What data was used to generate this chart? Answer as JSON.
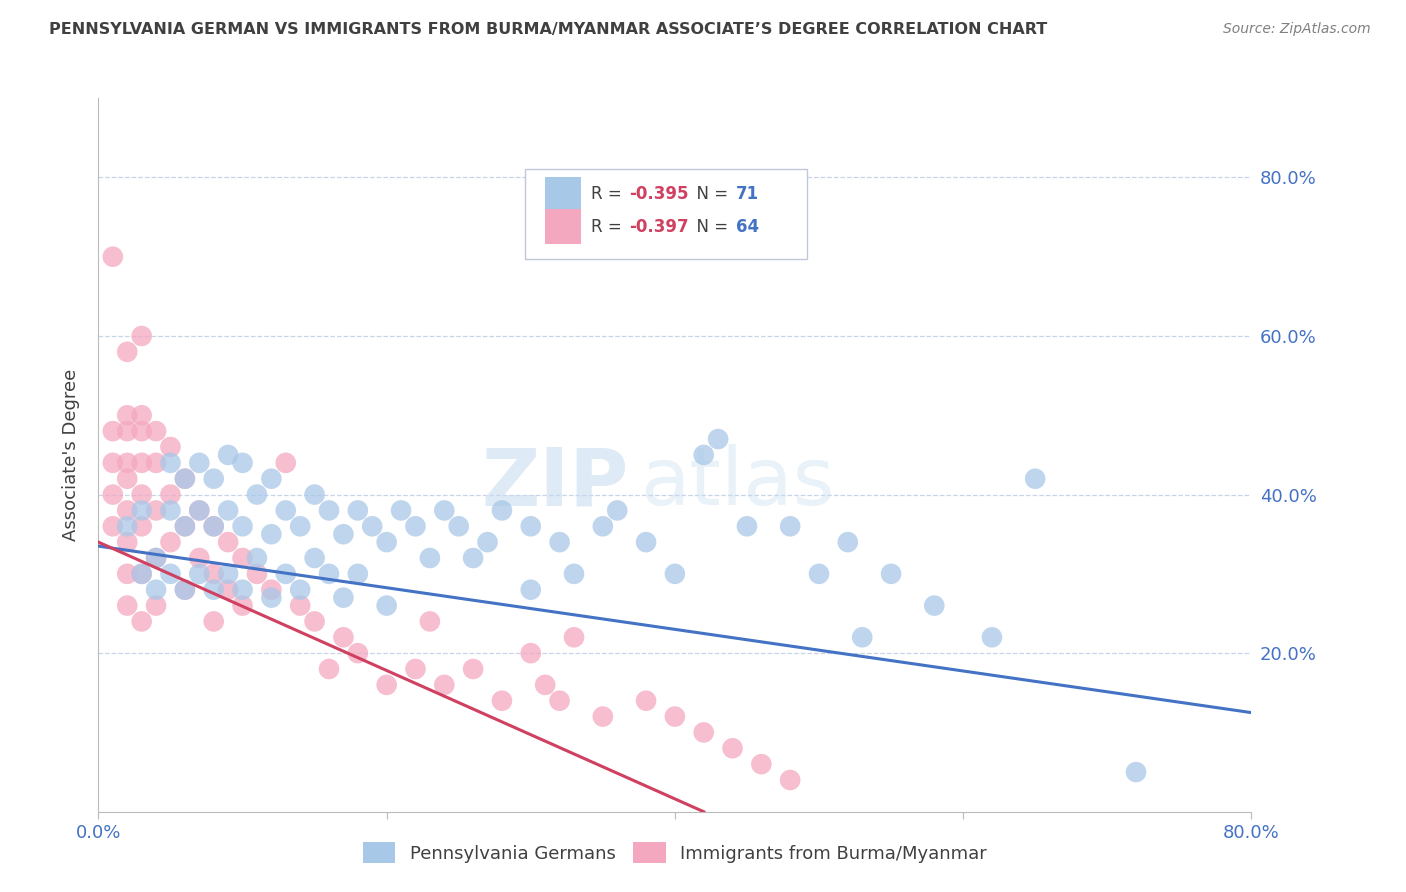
{
  "title": "PENNSYLVANIA GERMAN VS IMMIGRANTS FROM BURMA/MYANMAR ASSOCIATE’S DEGREE CORRELATION CHART",
  "source": "Source: ZipAtlas.com",
  "ylabel": "Associate's Degree",
  "watermark_zip": "ZIP",
  "watermark_atlas": "atlas",
  "legend_blue_r": "-0.395",
  "legend_blue_n": "71",
  "legend_pink_r": "-0.397",
  "legend_pink_n": "64",
  "blue_color": "#a8c8e8",
  "pink_color": "#f4a8c0",
  "trend_blue": "#4472c4",
  "trend_pink": "#d04060",
  "trend_gray": "#c8c8c8",
  "right_axis_color": "#4472c4",
  "title_color": "#404040",
  "source_color": "#808080",
  "background_color": "#ffffff",
  "grid_color": "#c8d4e8",
  "xlim": [
    0.0,
    0.8
  ],
  "ylim": [
    0.0,
    0.9
  ],
  "yticks": [
    0.0,
    0.2,
    0.4,
    0.6,
    0.8
  ],
  "ytick_labels": [
    "",
    "20.0%",
    "40.0%",
    "60.0%",
    "80.0%"
  ],
  "xticks": [
    0.0,
    0.2,
    0.4,
    0.6,
    0.8
  ],
  "blue_trend_start": 0.335,
  "blue_trend_end": 0.125,
  "pink_trend_start": 0.34,
  "pink_trend_end": 0.0,
  "pink_trend_end_x": 0.42,
  "gray_trend_start_x": 0.25,
  "gray_trend_end_x": 0.65,
  "blue_scatter": {
    "x": [
      0.02,
      0.03,
      0.03,
      0.04,
      0.04,
      0.05,
      0.05,
      0.05,
      0.06,
      0.06,
      0.06,
      0.07,
      0.07,
      0.07,
      0.08,
      0.08,
      0.08,
      0.09,
      0.09,
      0.09,
      0.1,
      0.1,
      0.1,
      0.11,
      0.11,
      0.12,
      0.12,
      0.12,
      0.13,
      0.13,
      0.14,
      0.14,
      0.15,
      0.15,
      0.16,
      0.16,
      0.17,
      0.17,
      0.18,
      0.18,
      0.19,
      0.2,
      0.2,
      0.21,
      0.22,
      0.23,
      0.24,
      0.25,
      0.26,
      0.27,
      0.28,
      0.3,
      0.3,
      0.32,
      0.33,
      0.35,
      0.36,
      0.38,
      0.4,
      0.42,
      0.43,
      0.45,
      0.48,
      0.5,
      0.52,
      0.53,
      0.55,
      0.58,
      0.62,
      0.65,
      0.72
    ],
    "y": [
      0.36,
      0.3,
      0.38,
      0.32,
      0.28,
      0.44,
      0.38,
      0.3,
      0.42,
      0.36,
      0.28,
      0.44,
      0.38,
      0.3,
      0.42,
      0.36,
      0.28,
      0.45,
      0.38,
      0.3,
      0.44,
      0.36,
      0.28,
      0.4,
      0.32,
      0.42,
      0.35,
      0.27,
      0.38,
      0.3,
      0.36,
      0.28,
      0.4,
      0.32,
      0.38,
      0.3,
      0.35,
      0.27,
      0.38,
      0.3,
      0.36,
      0.34,
      0.26,
      0.38,
      0.36,
      0.32,
      0.38,
      0.36,
      0.32,
      0.34,
      0.38,
      0.36,
      0.28,
      0.34,
      0.3,
      0.36,
      0.38,
      0.34,
      0.3,
      0.45,
      0.47,
      0.36,
      0.36,
      0.3,
      0.34,
      0.22,
      0.3,
      0.26,
      0.22,
      0.42,
      0.05
    ]
  },
  "pink_scatter": {
    "x": [
      0.01,
      0.01,
      0.01,
      0.01,
      0.02,
      0.02,
      0.02,
      0.02,
      0.02,
      0.02,
      0.02,
      0.02,
      0.03,
      0.03,
      0.03,
      0.03,
      0.03,
      0.03,
      0.03,
      0.04,
      0.04,
      0.04,
      0.04,
      0.04,
      0.05,
      0.05,
      0.05,
      0.06,
      0.06,
      0.06,
      0.07,
      0.07,
      0.08,
      0.08,
      0.08,
      0.09,
      0.09,
      0.1,
      0.1,
      0.11,
      0.12,
      0.13,
      0.14,
      0.15,
      0.16,
      0.17,
      0.18,
      0.2,
      0.22,
      0.23,
      0.24,
      0.26,
      0.28,
      0.3,
      0.31,
      0.32,
      0.33,
      0.35,
      0.38,
      0.4,
      0.42,
      0.44,
      0.46,
      0.48
    ],
    "y": [
      0.48,
      0.44,
      0.4,
      0.36,
      0.5,
      0.48,
      0.44,
      0.42,
      0.38,
      0.34,
      0.3,
      0.26,
      0.5,
      0.48,
      0.44,
      0.4,
      0.36,
      0.3,
      0.24,
      0.48,
      0.44,
      0.38,
      0.32,
      0.26,
      0.46,
      0.4,
      0.34,
      0.42,
      0.36,
      0.28,
      0.38,
      0.32,
      0.36,
      0.3,
      0.24,
      0.34,
      0.28,
      0.32,
      0.26,
      0.3,
      0.28,
      0.44,
      0.26,
      0.24,
      0.18,
      0.22,
      0.2,
      0.16,
      0.18,
      0.24,
      0.16,
      0.18,
      0.14,
      0.2,
      0.16,
      0.14,
      0.22,
      0.12,
      0.14,
      0.12,
      0.1,
      0.08,
      0.06,
      0.04
    ]
  },
  "special_pink_high": [
    0.01,
    0.7
  ],
  "special_pink_high2": [
    0.02,
    0.58
  ],
  "special_pink_high3": [
    0.03,
    0.6
  ]
}
